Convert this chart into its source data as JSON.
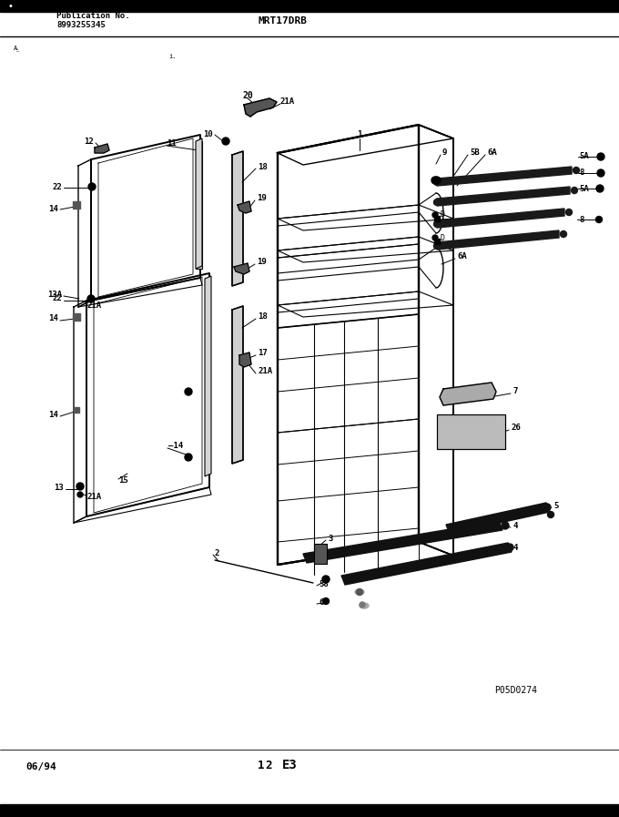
{
  "title": "MRT17DRB",
  "pub_no_label": "Publication No.",
  "pub_no": "8993255345",
  "footer_left": "06/94",
  "footer_center": "1 2   E3",
  "footer_img": "P05D0274",
  "bg_color": "#ffffff",
  "header_bar_color": "#000000",
  "dc": "#000000",
  "fig_width": 6.8,
  "fig_height": 8.97,
  "dpi": 100
}
